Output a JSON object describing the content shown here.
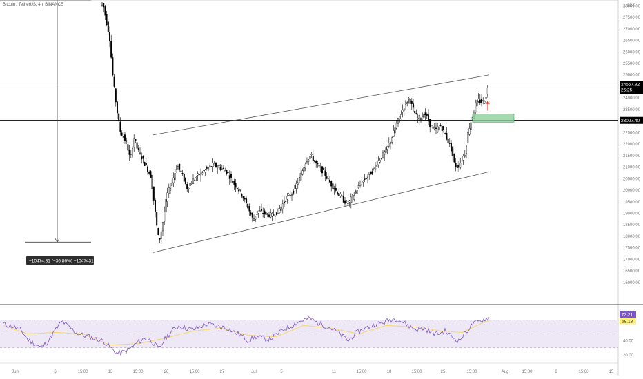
{
  "header": {
    "symbol_label": "Bitcoin / TetherUS, 4h, BINANCE",
    "currency": "USDT"
  },
  "colors": {
    "candle_up": "#ffffff",
    "candle_down": "#000000",
    "candle_outline": "#000000",
    "channel": "#555555",
    "support": "#000000",
    "zone_fill": "#8fd19e",
    "zone_stroke": "#3aa756",
    "arrow": "#e53935",
    "rsi_line": "#7e57c2",
    "rsi_ma": "#f5d76e",
    "rsi_band": "#ede7f6",
    "tag_last": "#000000",
    "tag_level": "#000000",
    "tag_rsi": "#7e57c2",
    "tag_rsi_ma": "#fff176"
  },
  "chart_data": {
    "type": "candlestick",
    "title": "Bitcoin / TetherUS, 4h, BINANCE",
    "ylabel": "USDT",
    "ylim": [
      15100,
      28250
    ],
    "y_ticks": [
      "28000.00",
      "27500.00",
      "27000.00",
      "26500.00",
      "26000.00",
      "25500.00",
      "25000.00",
      "24500.00",
      "24000.00",
      "23500.00",
      "23000.00",
      "22500.00",
      "22000.00",
      "21500.00",
      "21000.00",
      "20500.00",
      "20000.00",
      "19500.00",
      "19000.00",
      "18500.00",
      "18000.00",
      "17500.00",
      "17000.00",
      "16500.00",
      "16000.00"
    ],
    "x_ticks": [
      "Jun",
      "6",
      "15:00",
      "13",
      "15:00",
      "20",
      "15:00",
      "27",
      "Jul",
      "5",
      "11",
      "15:00",
      "18",
      "15:00",
      "25",
      "15:00",
      "Aug",
      "15:00",
      "8",
      "15:00",
      "15"
    ],
    "price_path": [
      [
        5,
        28300
      ],
      [
        40,
        27800
      ],
      [
        70,
        27300
      ],
      [
        100,
        27000
      ],
      [
        130,
        27350
      ],
      [
        150,
        28150
      ],
      [
        160,
        26600
      ],
      [
        165,
        24800
      ],
      [
        170,
        23600
      ],
      [
        175,
        22600
      ],
      [
        180,
        22300
      ],
      [
        185,
        22000
      ],
      [
        190,
        21300
      ],
      [
        195,
        22300
      ],
      [
        200,
        21800
      ],
      [
        210,
        21200
      ],
      [
        220,
        20600
      ],
      [
        225,
        19300
      ],
      [
        230,
        18000
      ],
      [
        233,
        17900
      ],
      [
        237,
        18600
      ],
      [
        243,
        19800
      ],
      [
        250,
        20300
      ],
      [
        258,
        21100
      ],
      [
        265,
        20700
      ],
      [
        272,
        20100
      ],
      [
        280,
        20400
      ],
      [
        290,
        20700
      ],
      [
        300,
        20900
      ],
      [
        310,
        21100
      ],
      [
        320,
        21000
      ],
      [
        330,
        20800
      ],
      [
        340,
        20300
      ],
      [
        350,
        19900
      ],
      [
        360,
        19300
      ],
      [
        368,
        18700
      ],
      [
        375,
        19100
      ],
      [
        385,
        19000
      ],
      [
        395,
        18900
      ],
      [
        405,
        19100
      ],
      [
        415,
        19600
      ],
      [
        425,
        19900
      ],
      [
        435,
        20500
      ],
      [
        445,
        21300
      ],
      [
        452,
        21500
      ],
      [
        460,
        21100
      ],
      [
        470,
        20800
      ],
      [
        480,
        20300
      ],
      [
        490,
        19900
      ],
      [
        498,
        19600
      ],
      [
        505,
        19400
      ],
      [
        512,
        19700
      ],
      [
        520,
        20100
      ],
      [
        530,
        20500
      ],
      [
        540,
        20800
      ],
      [
        550,
        21300
      ],
      [
        560,
        21700
      ],
      [
        568,
        22200
      ],
      [
        575,
        22800
      ],
      [
        582,
        23300
      ],
      [
        588,
        23700
      ],
      [
        594,
        24000
      ],
      [
        600,
        23500
      ],
      [
        606,
        23100
      ],
      [
        612,
        23200
      ],
      [
        618,
        23300
      ],
      [
        625,
        22800
      ],
      [
        632,
        22600
      ],
      [
        640,
        22800
      ],
      [
        648,
        22300
      ],
      [
        655,
        21800
      ],
      [
        660,
        21100
      ],
      [
        665,
        21000
      ],
      [
        670,
        21300
      ],
      [
        675,
        21600
      ],
      [
        680,
        22600
      ],
      [
        685,
        23100
      ],
      [
        690,
        23700
      ],
      [
        695,
        23900
      ],
      [
        700,
        23800
      ],
      [
        705,
        24000
      ],
      [
        709,
        24557.82
      ]
    ],
    "series": [
      {
        "name": "RSI (14)",
        "level_low": 30,
        "level_mid": 50,
        "level_high": 70,
        "last": 73.21,
        "path": [
          [
            5,
            64
          ],
          [
            20,
            60
          ],
          [
            30,
            56
          ],
          [
            40,
            42
          ],
          [
            50,
            36
          ],
          [
            60,
            30
          ],
          [
            70,
            40
          ],
          [
            80,
            55
          ],
          [
            90,
            68
          ],
          [
            100,
            60
          ],
          [
            110,
            52
          ],
          [
            120,
            48
          ],
          [
            130,
            46
          ],
          [
            140,
            42
          ],
          [
            150,
            40
          ],
          [
            160,
            30
          ],
          [
            170,
            22
          ],
          [
            180,
            24
          ],
          [
            190,
            30
          ],
          [
            200,
            38
          ],
          [
            210,
            44
          ],
          [
            220,
            40
          ],
          [
            230,
            28
          ],
          [
            240,
            44
          ],
          [
            250,
            55
          ],
          [
            260,
            62
          ],
          [
            270,
            58
          ],
          [
            280,
            56
          ],
          [
            290,
            60
          ],
          [
            300,
            64
          ],
          [
            310,
            62
          ],
          [
            320,
            60
          ],
          [
            330,
            58
          ],
          [
            340,
            52
          ],
          [
            350,
            48
          ],
          [
            360,
            40
          ],
          [
            370,
            46
          ],
          [
            380,
            44
          ],
          [
            390,
            42
          ],
          [
            400,
            48
          ],
          [
            410,
            56
          ],
          [
            420,
            60
          ],
          [
            430,
            66
          ],
          [
            440,
            70
          ],
          [
            450,
            72
          ],
          [
            460,
            66
          ],
          [
            470,
            62
          ],
          [
            480,
            58
          ],
          [
            490,
            52
          ],
          [
            500,
            44
          ],
          [
            505,
            40
          ],
          [
            515,
            50
          ],
          [
            525,
            56
          ],
          [
            535,
            60
          ],
          [
            545,
            64
          ],
          [
            555,
            66
          ],
          [
            565,
            70
          ],
          [
            575,
            72
          ],
          [
            585,
            66
          ],
          [
            595,
            60
          ],
          [
            605,
            56
          ],
          [
            615,
            58
          ],
          [
            625,
            52
          ],
          [
            635,
            50
          ],
          [
            645,
            54
          ],
          [
            655,
            46
          ],
          [
            665,
            40
          ],
          [
            675,
            52
          ],
          [
            685,
            64
          ],
          [
            695,
            68
          ],
          [
            705,
            72
          ],
          [
            709,
            73.21
          ]
        ]
      },
      {
        "name": "RSI MA",
        "last": 68.18,
        "path": [
          [
            5,
            62
          ],
          [
            40,
            50
          ],
          [
            80,
            52
          ],
          [
            120,
            50
          ],
          [
            160,
            34
          ],
          [
            200,
            36
          ],
          [
            240,
            44
          ],
          [
            280,
            54
          ],
          [
            320,
            58
          ],
          [
            360,
            48
          ],
          [
            400,
            46
          ],
          [
            440,
            62
          ],
          [
            480,
            58
          ],
          [
            520,
            50
          ],
          [
            560,
            62
          ],
          [
            600,
            60
          ],
          [
            640,
            54
          ],
          [
            670,
            52
          ],
          [
            700,
            66
          ],
          [
            709,
            68.18
          ]
        ]
      }
    ],
    "rsi_ticks": [
      "80.00",
      "40.00",
      "20.00"
    ],
    "annotations": {
      "measure_label": "−10474.31 (−36.86%) −1047431",
      "last_price": "24557.82",
      "countdown": "26:25",
      "support_level": "23027.40",
      "support_price": 23027.4,
      "channel_upper": [
        [
          222,
          22400
        ],
        [
          709,
          25000
        ]
      ],
      "channel_lower": [
        [
          222,
          17300
        ],
        [
          709,
          20800
        ]
      ],
      "zone": [
        23300,
        22950
      ],
      "rsi_last_label": "73.21",
      "rsi_ma_label": "68.18"
    }
  }
}
